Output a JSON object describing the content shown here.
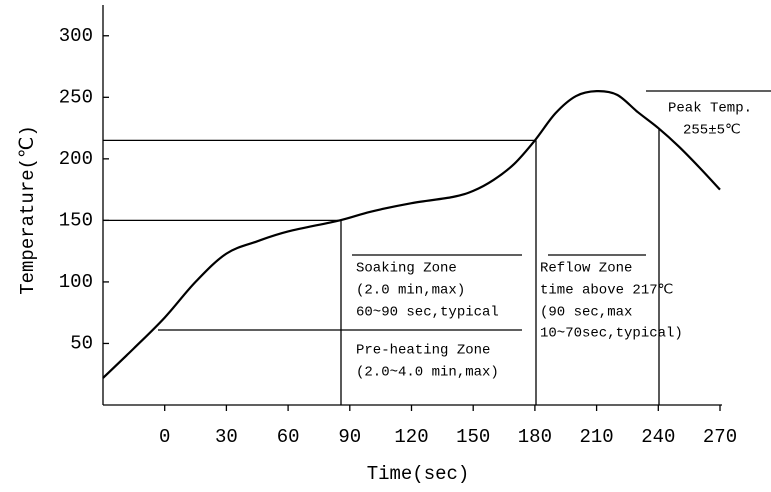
{
  "chart_data": {
    "type": "line",
    "x_label": "Time(sec)",
    "y_label": "Temperature(℃)",
    "x": [
      -30,
      -15,
      0,
      15,
      30,
      45,
      60,
      85,
      100,
      120,
      140,
      150,
      160,
      170,
      180,
      190,
      200,
      210,
      220,
      230,
      240,
      250,
      260,
      270
    ],
    "series": [
      {
        "color": "#000000",
        "values": [
          22,
          46,
          71,
          100,
          123,
          133,
          141,
          150,
          157,
          164,
          169,
          174,
          183,
          196,
          215,
          237,
          251,
          255,
          252,
          238,
          225,
          210,
          193,
          175
        ]
      }
    ],
    "xlim": [
      -30,
      270
    ],
    "xticks": [
      0,
      30,
      60,
      90,
      120,
      150,
      180,
      210,
      240,
      270
    ],
    "ylim": [
      0,
      325
    ],
    "yticks": [
      50,
      100,
      150,
      200,
      250,
      300
    ],
    "annotations": {
      "soaking": [
        "Soaking Zone",
        "(2.0 min,max)",
        "60~90 sec,typical"
      ],
      "preheating": [
        "Pre-heating Zone",
        "(2.0~4.0 min,max)"
      ],
      "reflow": [
        "Reflow Zone",
        "time above 217℃",
        "(90 sec,max",
        "10~70sec,typical)"
      ],
      "peak": [
        "Peak Temp.",
        "255±5℃"
      ]
    }
  }
}
